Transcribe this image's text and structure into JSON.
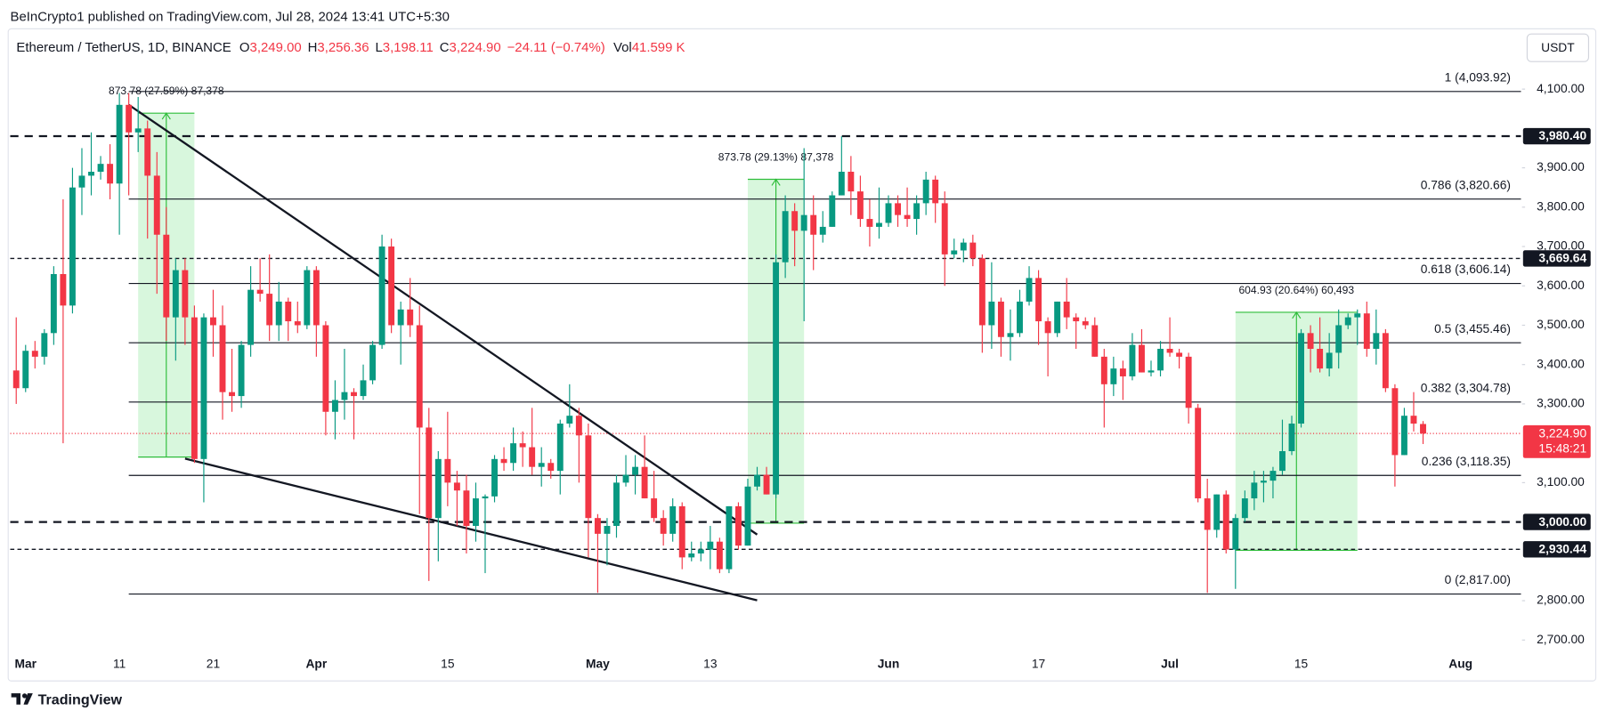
{
  "header": {
    "published": "BeInCrypto1 published on TradingView.com, Jul 28, 2024 13:41 UTC+5:30"
  },
  "chart_data": {
    "type": "candlestick",
    "title": "Ethereum / TetherUS, 1D, BINANCE",
    "legend": {
      "o_label": "O",
      "open": "3,249.00",
      "h_label": "H",
      "high": "3,256.36",
      "l_label": "L",
      "low": "3,198.11",
      "c_label": "C",
      "close": "3,224.90",
      "change": "−24.11 (−0.74%)",
      "vol_label": "Vol",
      "volume": "41.599 K"
    },
    "currency": "USDT",
    "up_color": "#089981",
    "down_color": "#f23645",
    "categories": [
      null,
      "Mar",
      null,
      null,
      null,
      null,
      null,
      null,
      null,
      null,
      null,
      "11",
      null,
      null,
      null,
      null,
      null,
      null,
      null,
      null,
      null,
      "21",
      null,
      null,
      null,
      null,
      null,
      null,
      null,
      null,
      null,
      null,
      "Apr",
      null,
      null,
      null,
      null,
      null,
      null,
      null,
      null,
      null,
      null,
      null,
      null,
      null,
      "15",
      null,
      null,
      null,
      null,
      null,
      null,
      null,
      null,
      null,
      null,
      null,
      null,
      null,
      null,
      null,
      "May",
      null,
      null,
      null,
      null,
      null,
      null,
      null,
      null,
      null,
      null,
      null,
      "13",
      null,
      null,
      null,
      null,
      null,
      null,
      null,
      null,
      null,
      null,
      null,
      null,
      null,
      null,
      null,
      null,
      null,
      null,
      "Jun",
      null,
      null,
      null,
      null,
      null,
      null,
      null,
      null,
      null,
      null,
      null,
      null,
      null,
      null,
      null,
      "17",
      null,
      null,
      null,
      null,
      null,
      null,
      null,
      null,
      null,
      null,
      null,
      null,
      null,
      "Jul",
      null,
      null,
      null,
      null,
      null,
      null,
      null,
      null,
      null,
      null,
      null,
      null,
      null,
      "15",
      null,
      null,
      null,
      null,
      null,
      null,
      null,
      null,
      null,
      null,
      null,
      null,
      null,
      null,
      null,
      null,
      "Aug"
    ],
    "open": [
      3385,
      3340,
      3435,
      3420,
      3480,
      3630,
      3550,
      3850,
      3880,
      3890,
      3910,
      3860,
      4060,
      3990,
      4000,
      3880,
      3730,
      3520,
      3640,
      3520,
      3160,
      3520,
      3500,
      3330,
      3320,
      3450,
      3590,
      3580,
      3500,
      3560,
      3510,
      3500,
      3640,
      3500,
      3280,
      3310,
      3330,
      3320,
      3360,
      3450,
      3700,
      3500,
      3540,
      3500,
      3240,
      3010,
      3160,
      3100,
      3080,
      2990,
      3060,
      3065,
      3160,
      3150,
      3200,
      3190,
      3140,
      3150,
      3130,
      3250,
      3270,
      3220,
      3010,
      2970,
      2990,
      3100,
      3120,
      3140,
      3060,
      3010,
      2970,
      3040,
      2910,
      2920,
      2930,
      2950,
      2880,
      3040,
      2940,
      3090,
      3120,
      3070,
      3660,
      3790,
      3740,
      3780,
      3730,
      3750,
      3830,
      3890,
      3840,
      3770,
      3750,
      3760,
      3810,
      3780,
      3770,
      3810,
      3870,
      3810,
      3680,
      3690,
      3710,
      3670,
      3500,
      3560,
      3470,
      3480,
      3560,
      3620,
      3510,
      3480,
      3560,
      3520,
      3510,
      3500,
      3420,
      3350,
      3390,
      3370,
      3450,
      3380,
      3385,
      3440,
      3430,
      3420,
      3290,
      3060,
      2980,
      3070,
      2930,
      3010,
      3060,
      3100,
      3105,
      3130,
      3180,
      3250,
      3480,
      3440,
      3390,
      3430,
      3500,
      3520,
      3530,
      3440,
      3480,
      3340,
      3170,
      3270,
      3249,
      null,
      null,
      null,
      null
    ],
    "high": [
      3520,
      3450,
      3460,
      3490,
      3650,
      3820,
      3900,
      3950,
      3990,
      3930,
      3960,
      4090,
      4090,
      4080,
      4020,
      3940,
      3800,
      3670,
      3670,
      3550,
      3530,
      3590,
      3550,
      3440,
      3460,
      3650,
      3670,
      3680,
      3610,
      3570,
      3560,
      3650,
      3650,
      3510,
      3360,
      3440,
      3340,
      3400,
      3460,
      3730,
      3720,
      3560,
      3620,
      3550,
      3290,
      3180,
      3280,
      3130,
      3120,
      3100,
      3070,
      3170,
      3190,
      3240,
      3230,
      3290,
      3190,
      3160,
      3260,
      3350,
      3290,
      3250,
      3020,
      3010,
      3120,
      3170,
      3170,
      3220,
      3130,
      3030,
      3060,
      3050,
      2950,
      2950,
      2990,
      2960,
      3040,
      3050,
      3110,
      3140,
      3140,
      3680,
      3830,
      3810,
      3950,
      3830,
      3790,
      3840,
      3980,
      3930,
      3880,
      3820,
      3850,
      3830,
      3830,
      3850,
      3830,
      3890,
      3880,
      3840,
      3720,
      3720,
      3730,
      3680,
      3660,
      3570,
      3540,
      3590,
      3650,
      3640,
      3520,
      3560,
      3620,
      3530,
      3520,
      3520,
      3440,
      3420,
      3410,
      3480,
      3490,
      3410,
      3460,
      3520,
      3440,
      3430,
      3300,
      3110,
      3070,
      3080,
      3020,
      3080,
      3130,
      3130,
      3140,
      3260,
      3270,
      3490,
      3500,
      3520,
      3480,
      3540,
      3530,
      3540,
      3560,
      3540,
      3490,
      3350,
      3290,
      3330,
      3256.36,
      null,
      null,
      null,
      null
    ],
    "low": [
      3300,
      3330,
      3390,
      3400,
      3450,
      3200,
      3530,
      3780,
      3830,
      3870,
      3820,
      3730,
      3830,
      3940,
      3720,
      3580,
      3460,
      3410,
      3450,
      3150,
      3050,
      3420,
      3260,
      3280,
      3290,
      3420,
      3560,
      3460,
      3460,
      3460,
      3480,
      3490,
      3420,
      3220,
      3210,
      3260,
      3210,
      3310,
      3350,
      3440,
      3480,
      3400,
      3470,
      3020,
      2850,
      2900,
      3040,
      2990,
      2920,
      2950,
      2870,
      3050,
      3130,
      3130,
      3140,
      3120,
      3090,
      3110,
      3070,
      3240,
      3100,
      2910,
      2820,
      2890,
      2960,
      3090,
      3070,
      3060,
      3000,
      2940,
      2950,
      2880,
      2900,
      2900,
      2880,
      2870,
      2870,
      2930,
      2940,
      3080,
      3070,
      3060,
      3620,
      3650,
      3510,
      3640,
      3710,
      3750,
      3830,
      3780,
      3750,
      3700,
      3720,
      3750,
      3750,
      3750,
      3730,
      3780,
      3760,
      3600,
      3670,
      3660,
      3650,
      3430,
      3440,
      3420,
      3410,
      3470,
      3550,
      3450,
      3370,
      3470,
      3490,
      3440,
      3490,
      3420,
      3240,
      3320,
      3310,
      3360,
      3380,
      3370,
      3370,
      3420,
      3390,
      3250,
      3050,
      2820,
      2960,
      2920,
      2830,
      3000,
      3030,
      3050,
      3060,
      3120,
      3170,
      3240,
      3380,
      3380,
      3370,
      3390,
      3490,
      3450,
      3420,
      3400,
      3330,
      3090,
      3170,
      3230,
      3198.11,
      null,
      null,
      null,
      null
    ],
    "close": [
      3340,
      3435,
      3420,
      3480,
      3630,
      3550,
      3850,
      3880,
      3890,
      3910,
      3860,
      4060,
      3990,
      4000,
      3880,
      3730,
      3520,
      3640,
      3520,
      3160,
      3520,
      3500,
      3330,
      3320,
      3450,
      3590,
      3580,
      3500,
      3560,
      3510,
      3500,
      3640,
      3500,
      3280,
      3310,
      3330,
      3320,
      3360,
      3450,
      3700,
      3500,
      3540,
      3500,
      3240,
      3010,
      3160,
      3100,
      3080,
      2990,
      3060,
      3065,
      3160,
      3150,
      3200,
      3190,
      3140,
      3150,
      3130,
      3250,
      3270,
      3220,
      3010,
      2970,
      2990,
      3100,
      3120,
      3140,
      3060,
      3010,
      2970,
      3040,
      2910,
      2920,
      2930,
      2950,
      2880,
      3040,
      2940,
      3090,
      3120,
      3070,
      3660,
      3790,
      3740,
      3780,
      3730,
      3750,
      3830,
      3890,
      3840,
      3770,
      3750,
      3760,
      3810,
      3780,
      3770,
      3810,
      3870,
      3810,
      3680,
      3690,
      3710,
      3670,
      3500,
      3560,
      3470,
      3480,
      3560,
      3620,
      3510,
      3480,
      3560,
      3520,
      3510,
      3500,
      3420,
      3350,
      3390,
      3370,
      3450,
      3380,
      3385,
      3440,
      3430,
      3420,
      3290,
      3060,
      2980,
      3070,
      2930,
      3010,
      3060,
      3100,
      3105,
      3130,
      3180,
      3250,
      3480,
      3440,
      3390,
      3430,
      3500,
      3520,
      3530,
      3440,
      3480,
      3340,
      3170,
      3270,
      3250,
      3224.9,
      null,
      null,
      null,
      null
    ],
    "ylim": [
      2622,
      4248
    ],
    "yticks": [
      {
        "value": 2700,
        "label": "2,700.00"
      },
      {
        "value": 2800,
        "label": "2,800.00"
      },
      {
        "value": 3100,
        "label": "3,100.00"
      },
      {
        "value": 3300,
        "label": "3,300.00"
      },
      {
        "value": 3400,
        "label": "3,400.00"
      },
      {
        "value": 3500,
        "label": "3,500.00"
      },
      {
        "value": 3600,
        "label": "3,600.00"
      },
      {
        "value": 3700,
        "label": "3,700.00"
      },
      {
        "value": 3800,
        "label": "3,800.00"
      },
      {
        "value": 3900,
        "label": "3,900.00"
      },
      {
        "value": 4100,
        "label": "4,100.00"
      }
    ],
    "fib_start": 12,
    "fib_levels": [
      {
        "value": 4093.92,
        "label": "1 (4,093.92)"
      },
      {
        "value": 3820.66,
        "label": "0.786 (3,820.66)"
      },
      {
        "value": 3606.14,
        "label": "0.618 (3,606.14)"
      },
      {
        "value": 3455.46,
        "label": "0.5 (3,455.46)"
      },
      {
        "value": 3304.78,
        "label": "0.382 (3,304.78)"
      },
      {
        "value": 3118.35,
        "label": "0.236 (3,118.35)"
      },
      {
        "value": 2817,
        "label": "0 (2,817.00)"
      }
    ],
    "price_lines": [
      {
        "value": 3980.4,
        "label": "3,980.40",
        "style": "bold"
      },
      {
        "value": 3669.64,
        "label": "3,669.64",
        "style": "thin"
      },
      {
        "value": 3000,
        "label": "3,000.00",
        "style": "bold"
      },
      {
        "value": 2930.44,
        "label": "2,930.44",
        "style": "thin"
      }
    ],
    "last_price": {
      "value": 3224.9,
      "label": "3,224.90",
      "countdown": "15:48:21"
    },
    "trendlines": [
      {
        "x": [
          12,
          79
        ],
        "y": [
          4060,
          2968
        ]
      },
      {
        "x": [
          18,
          79
        ],
        "y": [
          3161,
          2801
        ]
      }
    ],
    "ranges": [
      {
        "x": [
          13,
          19
        ],
        "from": 3165,
        "to": 4038.78,
        "label": "873.78 (27.59%) 87,378"
      },
      {
        "x": [
          78,
          84
        ],
        "from": 2997,
        "to": 3870.78,
        "label": "873.78 (29.13%) 87,378"
      },
      {
        "x": [
          130,
          143
        ],
        "from": 2928,
        "to": 3532.93,
        "label": "604.93 (20.64%) 60,493"
      }
    ]
  },
  "footer": {
    "brand": "TradingView"
  }
}
